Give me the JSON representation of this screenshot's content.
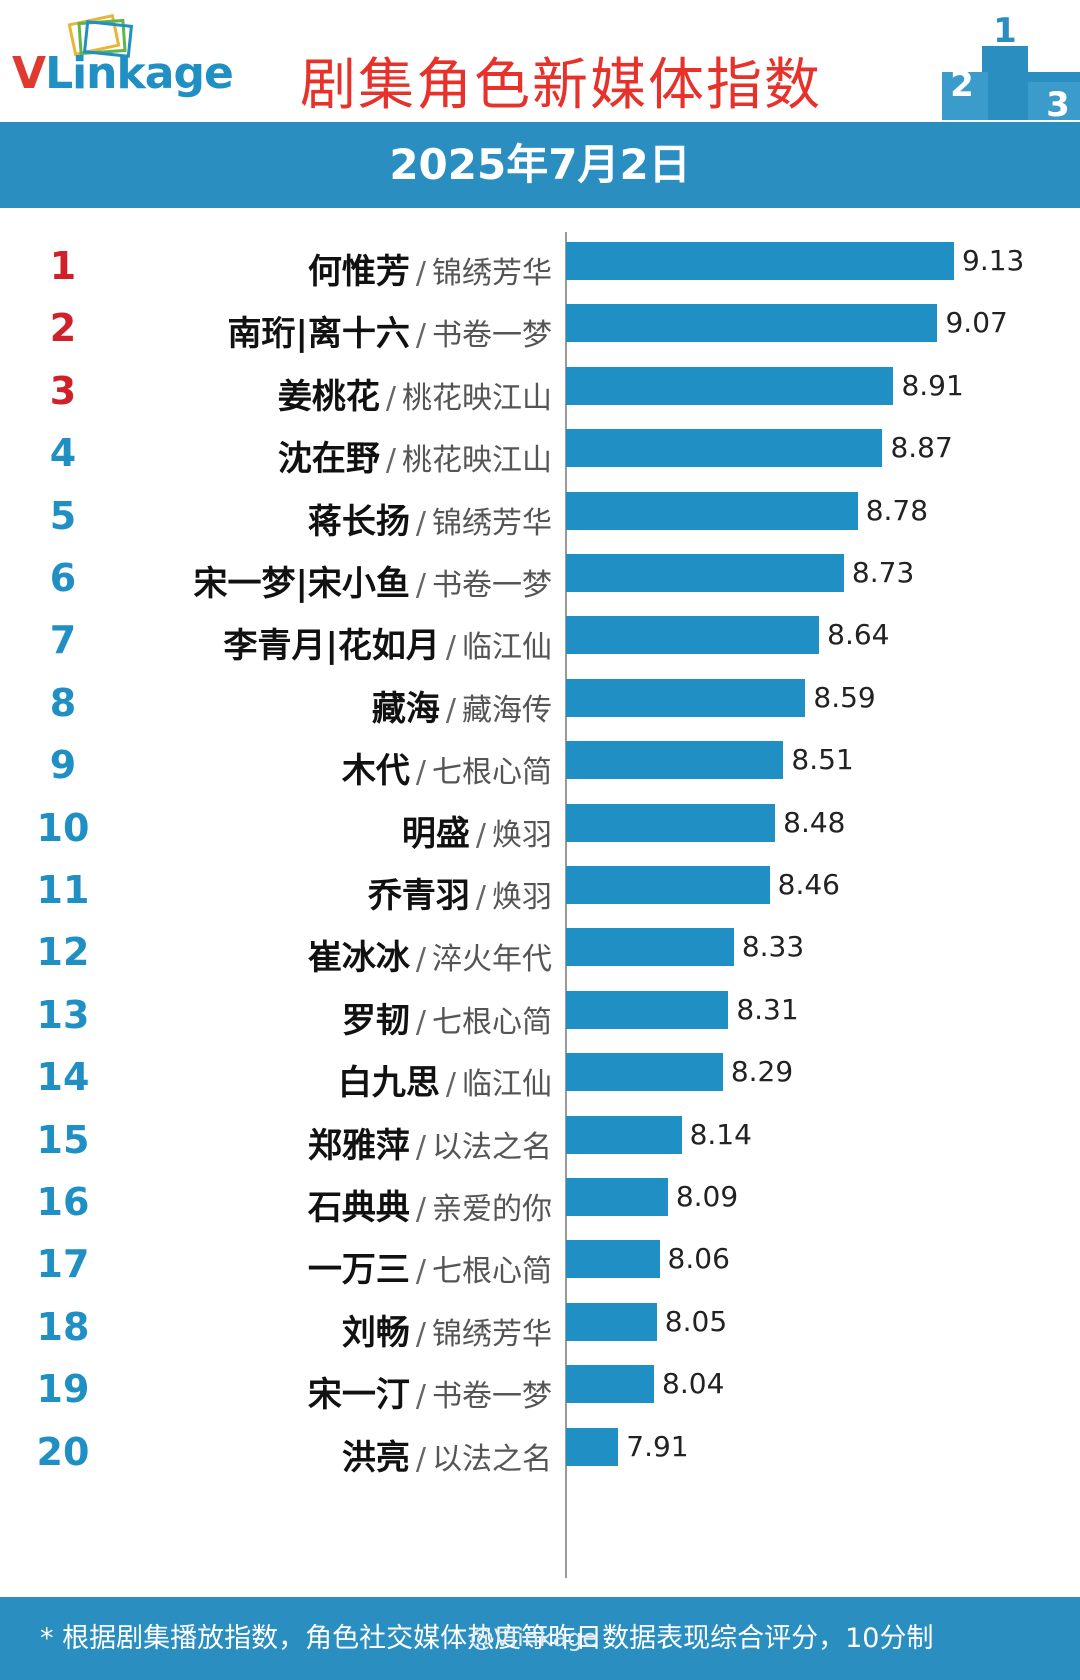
{
  "brand": {
    "logo_v": "V",
    "logo_rest": "Linkage"
  },
  "title": "剧集角色新媒体指数",
  "date": "2025年7月2日",
  "podium_numbers": [
    "2",
    "1",
    "3"
  ],
  "colors": {
    "bar": "#1f8fc4",
    "banner": "#2a8fc0",
    "rank_top": "#d0202a",
    "rank_rest": "#1f8fc4",
    "title": "#e6322a"
  },
  "separator": "/",
  "chart_data": {
    "type": "bar",
    "orientation": "horizontal",
    "rows": [
      {
        "rank": "1",
        "role": "何惟芳",
        "drama": "锦绣芳华",
        "value": 9.13,
        "value_label": "9.13"
      },
      {
        "rank": "2",
        "role": "南珩|离十六",
        "drama": "书卷一梦",
        "value": 9.07,
        "value_label": "9.07"
      },
      {
        "rank": "3",
        "role": "姜桃花",
        "drama": "桃花映江山",
        "value": 8.91,
        "value_label": "8.91"
      },
      {
        "rank": "4",
        "role": "沈在野",
        "drama": "桃花映江山",
        "value": 8.87,
        "value_label": "8.87"
      },
      {
        "rank": "5",
        "role": "蒋长扬",
        "drama": "锦绣芳华",
        "value": 8.78,
        "value_label": "8.78"
      },
      {
        "rank": "6",
        "role": "宋一梦|宋小鱼",
        "drama": "书卷一梦",
        "value": 8.73,
        "value_label": "8.73"
      },
      {
        "rank": "7",
        "role": "李青月|花如月",
        "drama": "临江仙",
        "value": 8.64,
        "value_label": "8.64"
      },
      {
        "rank": "8",
        "role": "藏海",
        "drama": "藏海传",
        "value": 8.59,
        "value_label": "8.59"
      },
      {
        "rank": "9",
        "role": "木代",
        "drama": "七根心简",
        "value": 8.51,
        "value_label": "8.51"
      },
      {
        "rank": "10",
        "role": "明盛",
        "drama": "焕羽",
        "value": 8.48,
        "value_label": "8.48"
      },
      {
        "rank": "11",
        "role": "乔青羽",
        "drama": "焕羽",
        "value": 8.46,
        "value_label": "8.46"
      },
      {
        "rank": "12",
        "role": "崔冰冰",
        "drama": "淬火年代",
        "value": 8.33,
        "value_label": "8.33"
      },
      {
        "rank": "13",
        "role": "罗韧",
        "drama": "七根心简",
        "value": 8.31,
        "value_label": "8.31"
      },
      {
        "rank": "14",
        "role": "白九思",
        "drama": "临江仙",
        "value": 8.29,
        "value_label": "8.29"
      },
      {
        "rank": "15",
        "role": "郑雅萍",
        "drama": "以法之名",
        "value": 8.14,
        "value_label": "8.14"
      },
      {
        "rank": "16",
        "role": "石典典",
        "drama": "亲爱的你",
        "value": 8.09,
        "value_label": "8.09"
      },
      {
        "rank": "17",
        "role": "一万三",
        "drama": "七根心简",
        "value": 8.06,
        "value_label": "8.06"
      },
      {
        "rank": "18",
        "role": "刘畅",
        "drama": "锦绣芳华",
        "value": 8.05,
        "value_label": "8.05"
      },
      {
        "rank": "19",
        "role": "宋一汀",
        "drama": "书卷一梦",
        "value": 8.04,
        "value_label": "8.04"
      },
      {
        "rank": "20",
        "role": "洪亮",
        "drama": "以法之名",
        "value": 7.91,
        "value_label": "7.91"
      }
    ],
    "xlim": [
      7.72,
      9.13
    ],
    "grid": false,
    "legend": "none"
  },
  "footer": {
    "note": "* 根据剧集播放指数，角色社交媒体热度等昨日数据表现综合评分，10分制",
    "watermark": "@Vlinkage"
  }
}
